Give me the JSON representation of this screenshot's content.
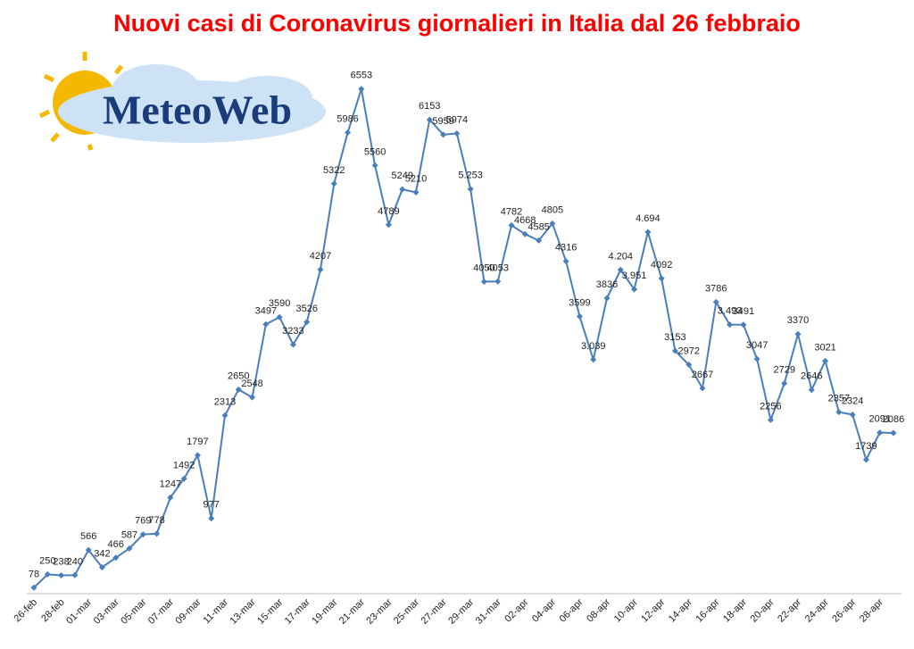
{
  "chart_data": {
    "type": "line",
    "title": "Nuovi casi di Coronavirus giornalieri in Italia dal 26 febbraio",
    "logo": "MeteoWeb",
    "categories": [
      "26-feb",
      null,
      "28-feb",
      null,
      "01-mar",
      null,
      "03-mar",
      null,
      "05-mar",
      null,
      "07-mar",
      null,
      "09-mar",
      null,
      "11-mar",
      null,
      "13-mar",
      null,
      "15-mar",
      null,
      "17-mar",
      null,
      "19-mar",
      null,
      "21-mar",
      null,
      "23-mar",
      null,
      "25-mar",
      null,
      "27-mar",
      null,
      "29-mar",
      null,
      "31-mar",
      null,
      "02-apr",
      null,
      "04-apr",
      null,
      "06-apr",
      null,
      "08-apr",
      null,
      "10-apr",
      null,
      "12-apr",
      null,
      "14-apr",
      null,
      "16-apr",
      null,
      "18-apr",
      null,
      "20-apr",
      null,
      "22-apr",
      null,
      "24-apr",
      null,
      "26-apr",
      null,
      "28-apr",
      null
    ],
    "values": [
      78,
      250,
      238,
      240,
      566,
      342,
      466,
      587,
      769,
      778,
      1247,
      1492,
      1797,
      977,
      2313,
      2650,
      2548,
      3497,
      3590,
      3233,
      3526,
      4207,
      5322,
      5986,
      6553,
      5560,
      4789,
      5249,
      5210,
      6153,
      5959,
      5974,
      5253,
      4050,
      4053,
      4782,
      4668,
      4585,
      4805,
      4316,
      3599,
      3039,
      3836,
      4204,
      3951,
      4694,
      4092,
      3153,
      2972,
      2667,
      3786,
      3493,
      3491,
      3047,
      2256,
      2729,
      3370,
      2646,
      3021,
      2357,
      2324,
      1739,
      2091,
      2086
    ],
    "value_labels": [
      "78",
      "250",
      "238",
      "240",
      "566",
      "342",
      "466",
      "587",
      "769",
      "778",
      "1247",
      "1492",
      "1797",
      "977",
      "2313",
      "2650",
      "2548",
      "3497",
      "3590",
      "3233",
      "3526",
      "4207",
      "5322",
      "5986",
      "6553",
      "5560",
      "4789",
      "5249",
      "5210",
      "6153",
      "5959",
      "5974",
      "5.253",
      "4050",
      "4053",
      "4782",
      "4668",
      "4585",
      "4805",
      "4316",
      "3599",
      "3.039",
      "3836",
      "4.204",
      "3.951",
      "4.694",
      "4092",
      "3153",
      "2972",
      "2667",
      "3786",
      "3.493",
      "3491",
      "3047",
      "2256",
      "2729",
      "3370",
      "2646",
      "3021",
      "2357",
      "2324",
      "1739",
      "2091",
      "2086"
    ],
    "color": "#4a7ebb",
    "title_color": "#ff0000",
    "ylim": [
      0,
      7000
    ]
  }
}
